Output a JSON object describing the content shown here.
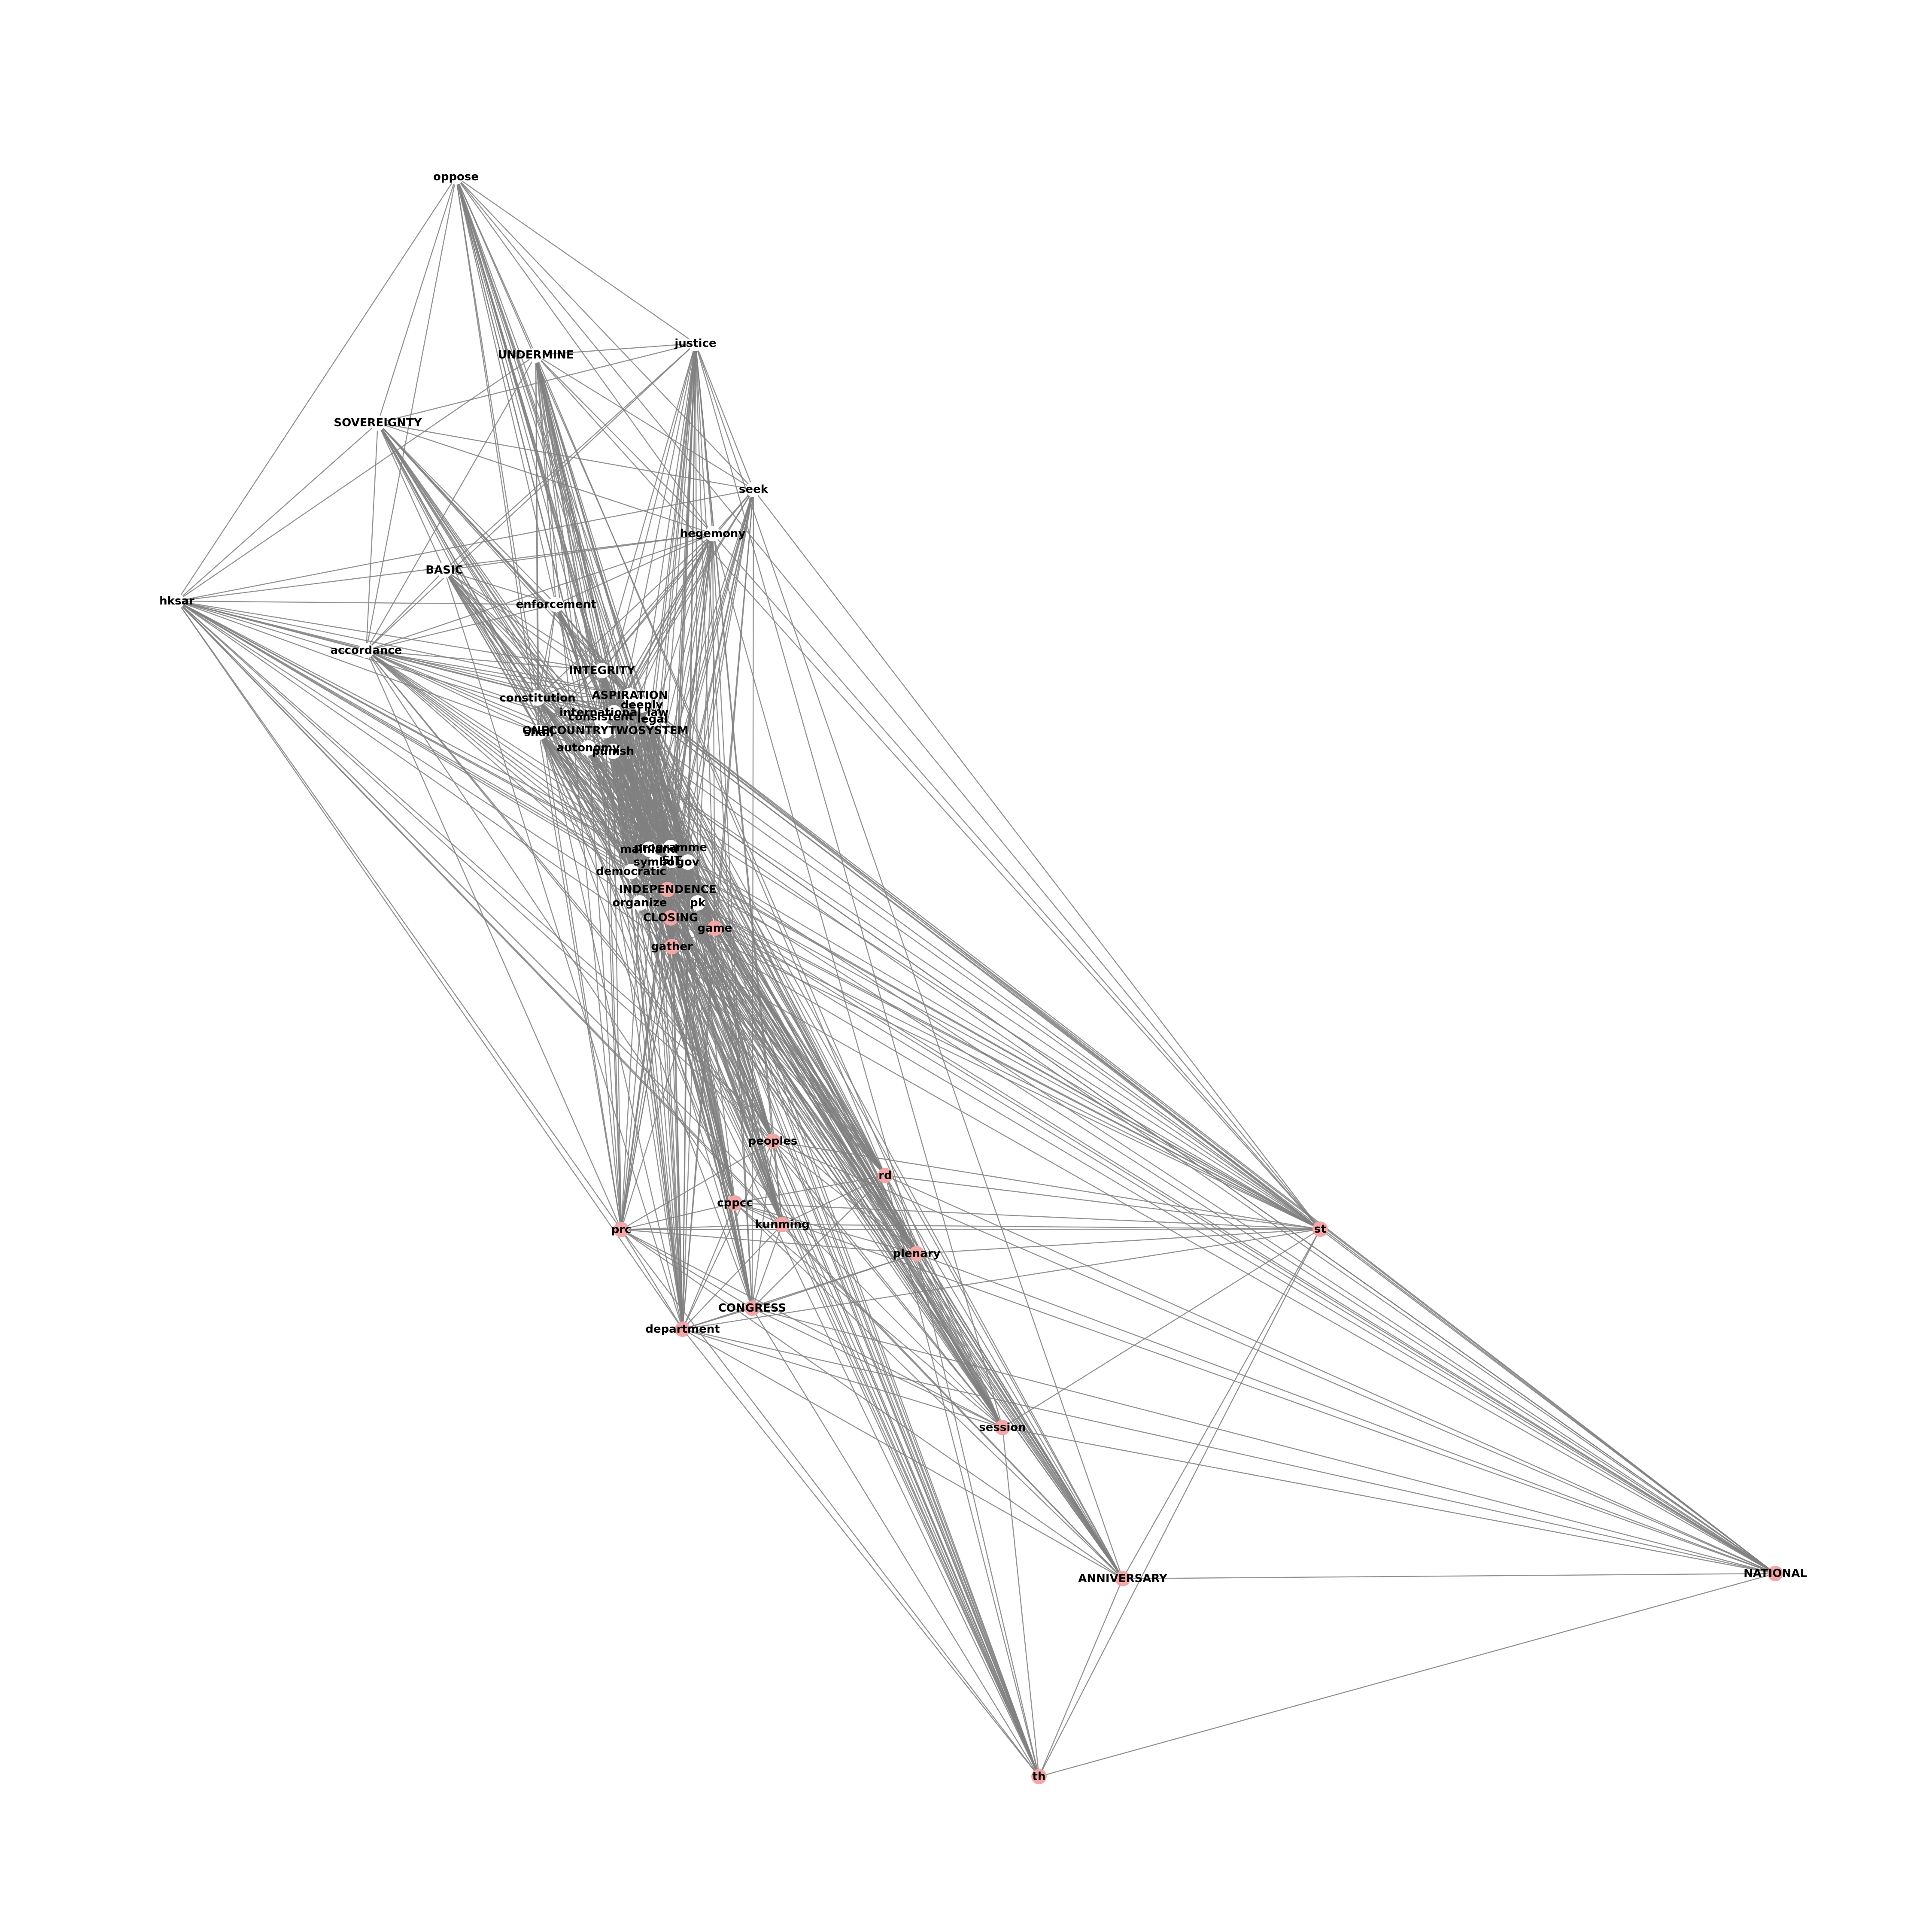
{
  "graph": {
    "colors": {
      "background": "#ffffff",
      "edge": "#808080",
      "node_red": "#f4a6a6",
      "node_white": "#ffffff",
      "label": "#000000"
    },
    "nodes": [
      {
        "id": "oppose",
        "label": "oppose",
        "color": "white"
      },
      {
        "id": "justice",
        "label": "justice",
        "color": "white"
      },
      {
        "id": "UNDERMINE",
        "label": "UNDERMINE",
        "color": "white"
      },
      {
        "id": "SOVEREIGNTY",
        "label": "SOVEREIGNTY",
        "color": "white"
      },
      {
        "id": "seek",
        "label": "seek",
        "color": "white"
      },
      {
        "id": "hegemony",
        "label": "hegemony",
        "color": "white"
      },
      {
        "id": "BASIC",
        "label": "BASIC",
        "color": "white"
      },
      {
        "id": "hksar",
        "label": "hksar",
        "color": "white"
      },
      {
        "id": "enforcement",
        "label": "enforcement",
        "color": "white"
      },
      {
        "id": "accordance",
        "label": "accordance",
        "color": "white"
      },
      {
        "id": "INTEGRITY",
        "label": "INTEGRITY",
        "color": "white"
      },
      {
        "id": "constitution",
        "label": "constitution",
        "color": "white"
      },
      {
        "id": "ASPIRATION",
        "label": "ASPIRATION",
        "color": "white"
      },
      {
        "id": "deeply",
        "label": "deeply",
        "color": "white"
      },
      {
        "id": "international_law",
        "label": "international_law",
        "color": "white"
      },
      {
        "id": "consistent",
        "label": "consistent",
        "color": "white"
      },
      {
        "id": "legal",
        "label": "legal",
        "color": "white"
      },
      {
        "id": "shall",
        "label": "shall",
        "color": "white"
      },
      {
        "id": "ONECOUNTRYTWOSYSTEM",
        "label": "ONECOUNTRYTWOSYSTEM",
        "color": "white"
      },
      {
        "id": "autonomy",
        "label": "autonomy",
        "color": "white"
      },
      {
        "id": "punish",
        "label": "punish",
        "color": "white"
      },
      {
        "id": "programme",
        "label": "programme",
        "color": "white"
      },
      {
        "id": "mainland",
        "label": "mainland",
        "color": "white"
      },
      {
        "id": "symbol",
        "label": "symbol",
        "color": "white"
      },
      {
        "id": "SIT",
        "label": "SIT",
        "color": "white"
      },
      {
        "id": "gov",
        "label": "gov",
        "color": "white"
      },
      {
        "id": "democratic",
        "label": "democratic",
        "color": "white"
      },
      {
        "id": "INDEPENDENCE",
        "label": "INDEPENDENCE",
        "color": "red"
      },
      {
        "id": "organize",
        "label": "organize",
        "color": "white"
      },
      {
        "id": "pk",
        "label": "pk",
        "color": "white"
      },
      {
        "id": "CLOSING",
        "label": "CLOSING",
        "color": "red"
      },
      {
        "id": "game",
        "label": "game",
        "color": "red"
      },
      {
        "id": "gather",
        "label": "gather",
        "color": "red"
      },
      {
        "id": "peoples",
        "label": "peoples",
        "color": "red"
      },
      {
        "id": "rd",
        "label": "rd",
        "color": "red"
      },
      {
        "id": "cppcc",
        "label": "cppcc",
        "color": "red"
      },
      {
        "id": "kunming",
        "label": "kunming",
        "color": "red"
      },
      {
        "id": "prc",
        "label": "prc",
        "color": "red"
      },
      {
        "id": "st",
        "label": "st",
        "color": "red"
      },
      {
        "id": "plenary",
        "label": "plenary",
        "color": "red"
      },
      {
        "id": "CONGRESS",
        "label": "CONGRESS",
        "color": "red"
      },
      {
        "id": "department",
        "label": "department",
        "color": "red"
      },
      {
        "id": "session",
        "label": "session",
        "color": "red"
      },
      {
        "id": "ANNIVERSARY",
        "label": "ANNIVERSARY",
        "color": "red"
      },
      {
        "id": "NATIONAL",
        "label": "NATIONAL",
        "color": "red"
      },
      {
        "id": "th",
        "label": "th",
        "color": "red"
      }
    ]
  }
}
